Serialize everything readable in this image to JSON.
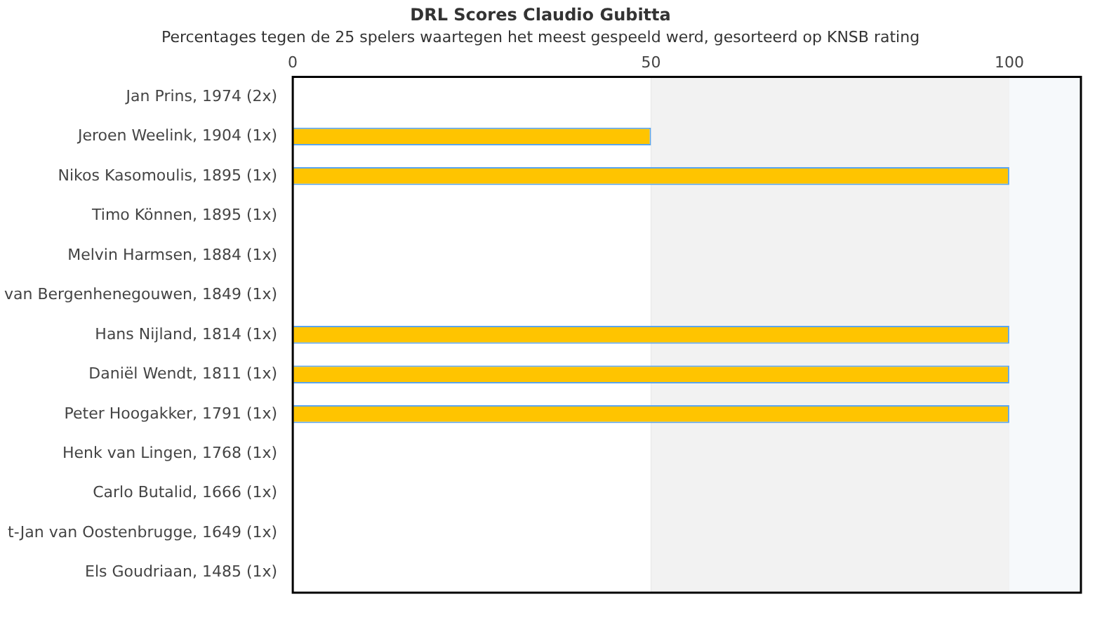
{
  "chart_data": {
    "type": "bar",
    "orientation": "horizontal",
    "title": "DRL Scores Claudio Gubitta",
    "subtitle": "Percentages tegen de 25 spelers waartegen het meest gespeeld werd, gesorteerd op KNSB rating",
    "categories": [
      "Jan Prins, 1974 (2x)",
      "Jeroen Weelink, 1904 (1x)",
      "Nikos Kasomoulis, 1895 (1x)",
      "Timo Können, 1895 (1x)",
      "Melvin Harmsen, 1884 (1x)",
      "van Bergenhenegouwen, 1849 (1x)",
      "Hans Nijland, 1814 (1x)",
      "Daniël Wendt, 1811 (1x)",
      "Peter Hoogakker, 1791 (1x)",
      "Henk van Lingen, 1768 (1x)",
      "Carlo Butalid, 1666 (1x)",
      "t-Jan van Oostenbrugge, 1649 (1x)",
      "Els Goudriaan, 1485 (1x)"
    ],
    "values": [
      0,
      50,
      100,
      0,
      0,
      0,
      100,
      100,
      100,
      0,
      0,
      0,
      0
    ],
    "color": "#ffc400",
    "xlim": [
      0,
      110
    ],
    "xticks": [
      0,
      50,
      100
    ],
    "bands": [
      {
        "axis": "x",
        "from": 50,
        "to": 100,
        "color": "#f2f2f2"
      },
      {
        "axis": "x",
        "from": 100,
        "to": 110,
        "color": "#f6f9fb"
      }
    ],
    "grid": "x",
    "legend": false
  }
}
